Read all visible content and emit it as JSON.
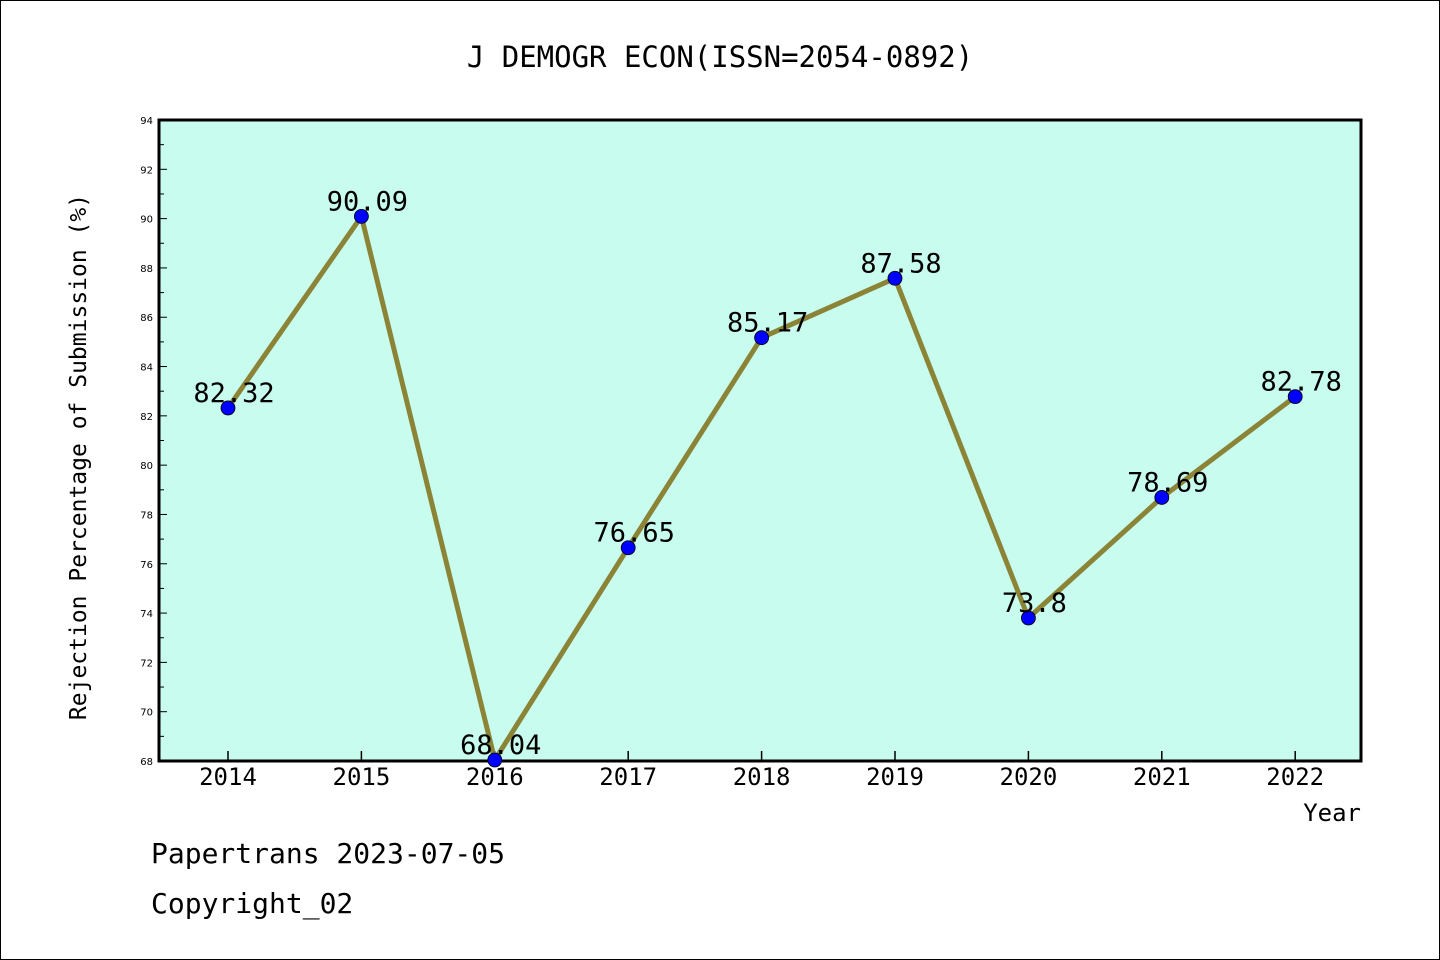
{
  "chart_data": {
    "type": "line",
    "title": "J DEMOGR ECON(ISSN=2054-0892)",
    "xlabel": "Year",
    "ylabel": "Rejection Percentage of Submission (%)",
    "categories": [
      "2014",
      "2015",
      "2016",
      "2017",
      "2018",
      "2019",
      "2020",
      "2021",
      "2022"
    ],
    "values": [
      82.32,
      90.09,
      68.04,
      76.65,
      85.17,
      87.58,
      73.8,
      78.69,
      82.78
    ],
    "data_labels": [
      "82.32",
      "90.09",
      "68.04",
      "76.65",
      "85.17",
      "87.58",
      "73.8",
      "78.69",
      "82.78"
    ],
    "yticks": [
      "68",
      "70",
      "72",
      "74",
      "76",
      "78",
      "80",
      "82",
      "84",
      "86",
      "88",
      "90",
      "92",
      "94"
    ],
    "ylim": [
      68,
      94
    ],
    "grid": false,
    "colors": {
      "plot_background": "#c8fcee",
      "line": "#8b8436",
      "marker": "#0000ff"
    }
  },
  "footer": {
    "line1": "Papertrans 2023-07-05",
    "line2": "Copyright_02"
  }
}
